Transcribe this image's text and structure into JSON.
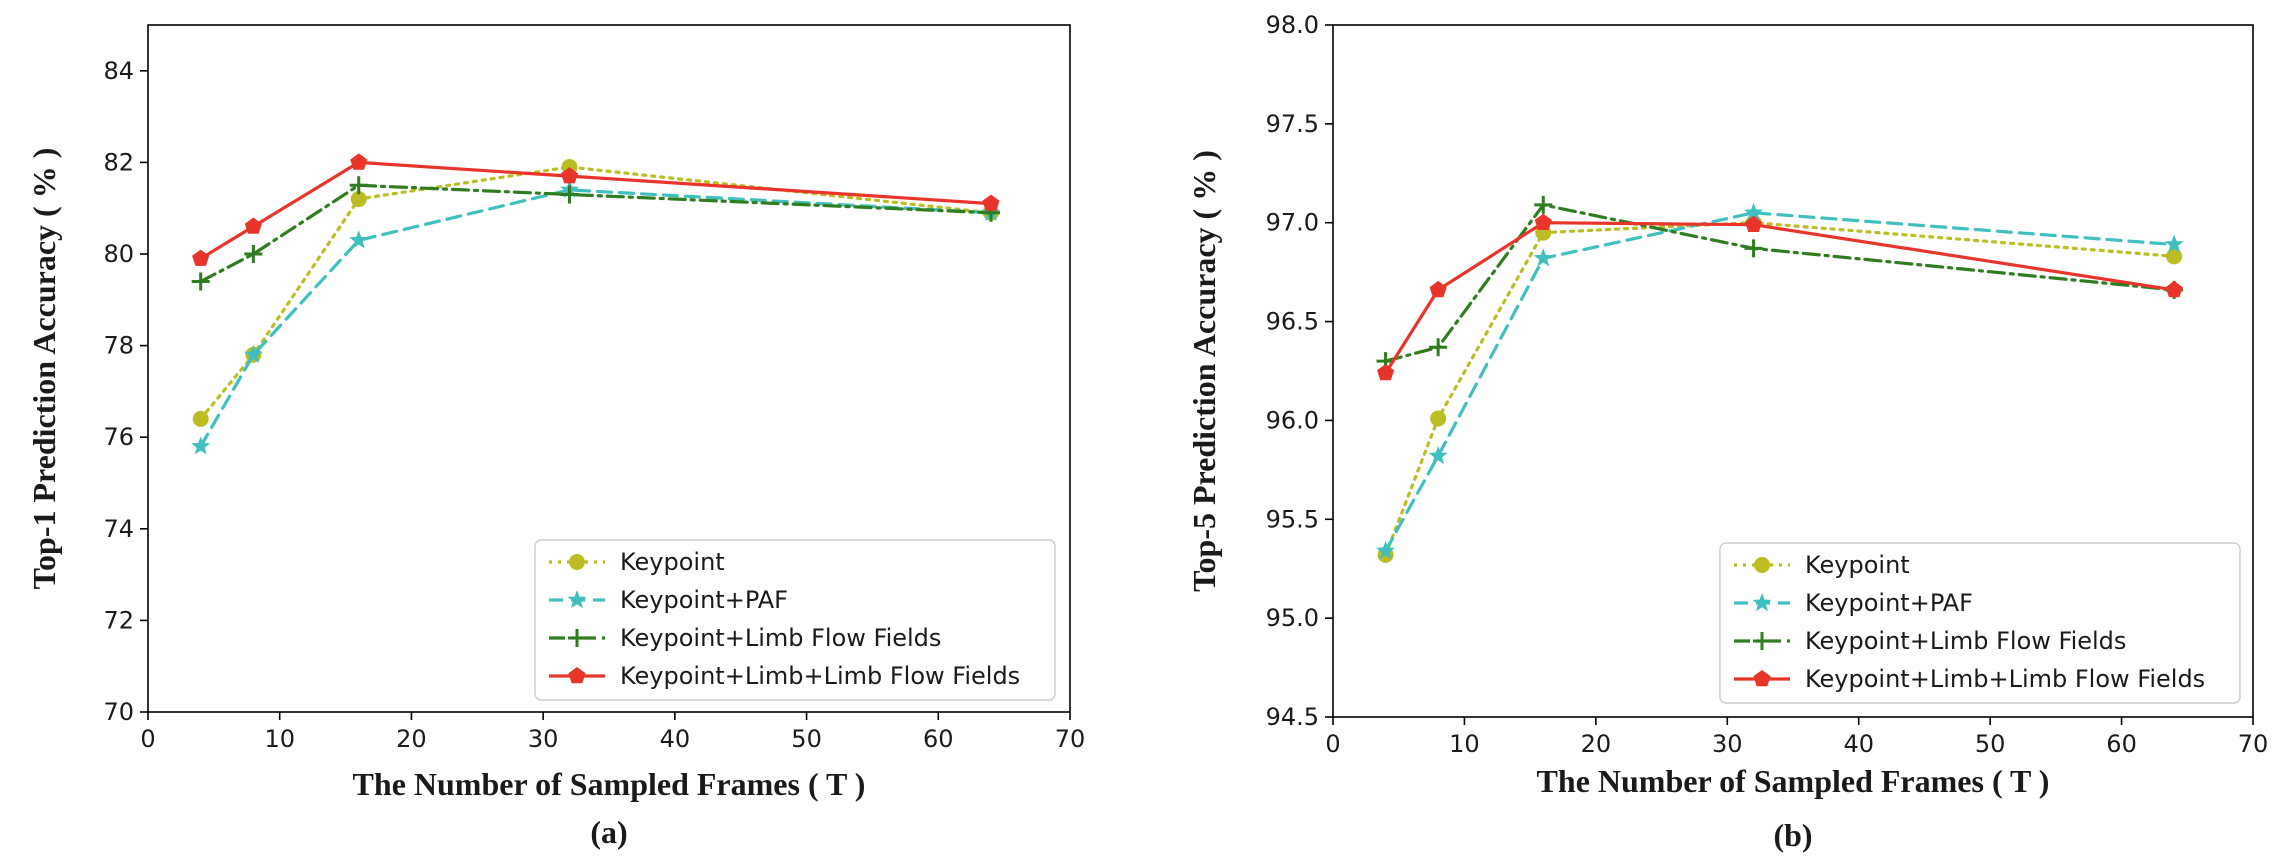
{
  "chart_data": [
    {
      "type": "line",
      "caption": "(a)",
      "xlabel": "The Number of  Sampled Frames ( T )",
      "ylabel": "Top-1   Prediction Accuracy ( % )",
      "xlim": [
        0,
        70
      ],
      "ylim": [
        70,
        85
      ],
      "xticks": [
        0,
        10,
        20,
        30,
        40,
        50,
        60,
        70
      ],
      "yticks": [
        70,
        72,
        74,
        76,
        78,
        80,
        82,
        84
      ],
      "ytick_labels": [
        "70",
        "72",
        "74",
        "76",
        "78",
        "80",
        "82",
        "84"
      ],
      "grid": false,
      "legend_position": "lower-right",
      "x": [
        4,
        8,
        16,
        32,
        64
      ],
      "series": [
        {
          "name": "Keypoint",
          "color": "#bcbd22",
          "linestyle": "dotted",
          "marker": "circle",
          "values": [
            76.4,
            77.8,
            81.2,
            81.9,
            80.9
          ]
        },
        {
          "name": "Keypoint+PAF",
          "color": "#3fbfbf",
          "linestyle": "dashed",
          "marker": "star",
          "values": [
            75.8,
            77.8,
            80.3,
            81.4,
            80.9
          ]
        },
        {
          "name": "Keypoint+Limb Flow Fields",
          "color": "#2e7d1f",
          "linestyle": "dashdot",
          "marker": "plus",
          "values": [
            79.4,
            80.0,
            81.5,
            81.3,
            80.9
          ]
        },
        {
          "name": "Keypoint+Limb+Limb Flow Fields",
          "color": "#e8352a",
          "linestyle": "solid",
          "marker": "pentagon",
          "values": [
            79.9,
            80.6,
            82.0,
            81.7,
            81.1
          ]
        }
      ]
    },
    {
      "type": "line",
      "caption": "(b)",
      "xlabel": "The Number of  Sampled Frames ( T )",
      "ylabel": "Top-5   Prediction Accuracy ( % )",
      "xlim": [
        0,
        70
      ],
      "ylim": [
        94.5,
        98.0
      ],
      "xticks": [
        0,
        10,
        20,
        30,
        40,
        50,
        60,
        70
      ],
      "yticks": [
        94.5,
        95.0,
        95.5,
        96.0,
        96.5,
        97.0,
        97.5,
        98.0
      ],
      "ytick_labels": [
        "94.5",
        "95.0",
        "95.5",
        "96.0",
        "96.5",
        "97.0",
        "97.5",
        "98.0"
      ],
      "grid": false,
      "legend_position": "lower-right",
      "x": [
        4,
        8,
        16,
        32,
        64
      ],
      "series": [
        {
          "name": "Keypoint",
          "color": "#bcbd22",
          "linestyle": "dotted",
          "marker": "circle",
          "values": [
            95.32,
            96.01,
            96.95,
            97.0,
            96.83
          ]
        },
        {
          "name": "Keypoint+PAF",
          "color": "#3fbfbf",
          "linestyle": "dashed",
          "marker": "star",
          "values": [
            95.34,
            95.82,
            96.82,
            97.05,
            96.89
          ]
        },
        {
          "name": "Keypoint+Limb Flow Fields",
          "color": "#2e7d1f",
          "linestyle": "dashdot",
          "marker": "plus",
          "values": [
            96.3,
            96.37,
            97.09,
            96.87,
            96.66
          ]
        },
        {
          "name": "Keypoint+Limb+Limb Flow Fields",
          "color": "#e8352a",
          "linestyle": "solid",
          "marker": "pentagon",
          "values": [
            96.24,
            96.66,
            97.0,
            96.99,
            96.66
          ]
        }
      ]
    }
  ]
}
